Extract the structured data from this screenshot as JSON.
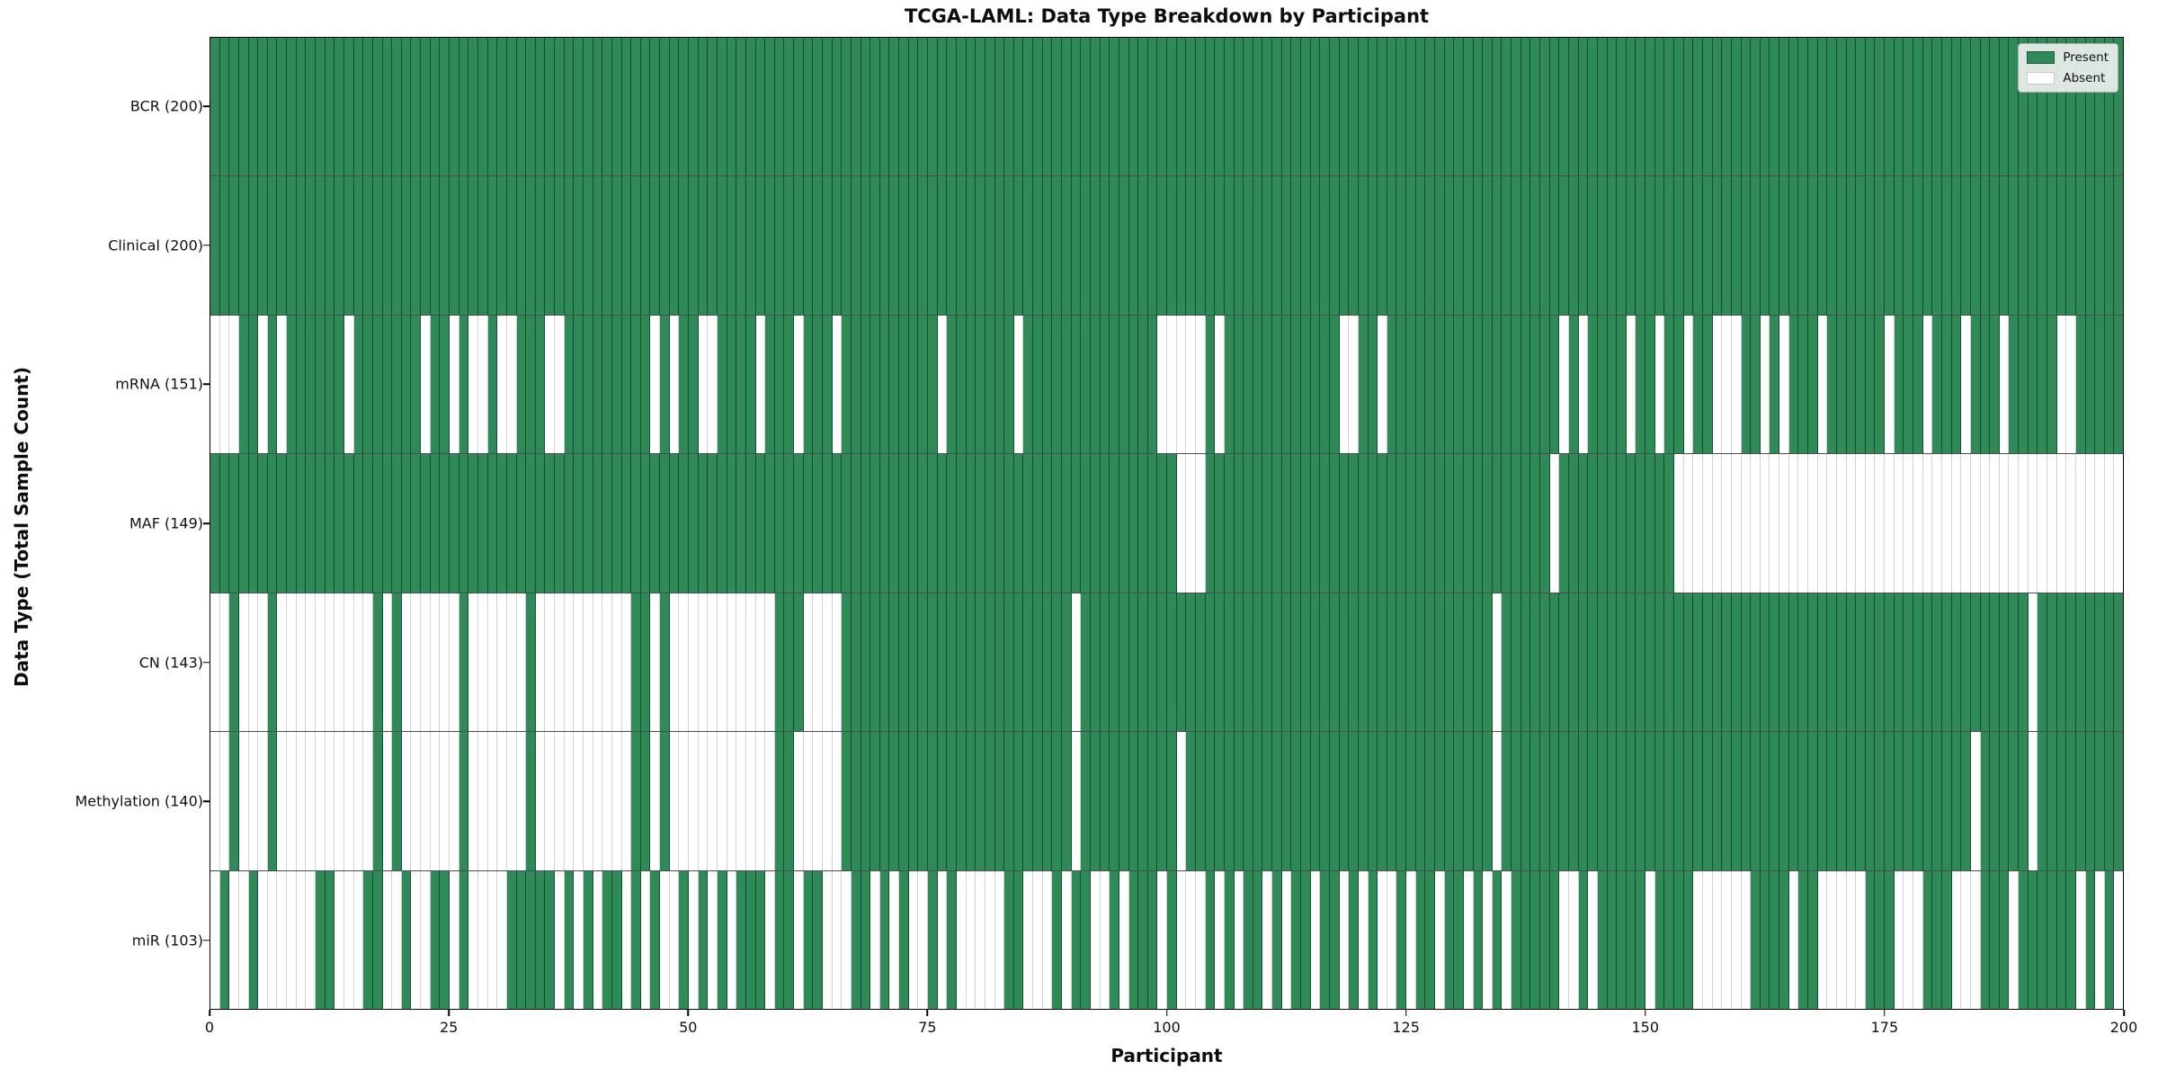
{
  "title": "TCGA-LAML: Data Type Breakdown by Participant",
  "chart_data": {
    "type": "heatmap",
    "title": "TCGA-LAML: Data Type Breakdown by Participant",
    "xlabel": "Participant",
    "ylabel": "Data Type (Total Sample Count)",
    "n_participants": 200,
    "x_ticks": [
      0,
      25,
      50,
      75,
      100,
      125,
      150,
      175,
      200
    ],
    "x_range": [
      0,
      200
    ],
    "grid": "cell-edges",
    "legend": {
      "position": "upper right",
      "present_label": "Present",
      "absent_label": "Absent"
    },
    "colors": {
      "present": "#2e8b57",
      "absent": "#ffffff",
      "present_edge": "rgba(0,0,0,0.45)",
      "absent_edge": "#d2d2d2"
    },
    "rows": [
      {
        "label": "BCR (200)",
        "name": "BCR",
        "present_count": 200,
        "absent": []
      },
      {
        "label": "Clinical (200)",
        "name": "Clinical",
        "present_count": 200,
        "absent": []
      },
      {
        "label": "mRNA (151)",
        "name": "mRNA",
        "present_count": 151,
        "absent": [
          0,
          1,
          2,
          5,
          7,
          14,
          22,
          25,
          27,
          28,
          30,
          31,
          35,
          36,
          46,
          48,
          51,
          52,
          57,
          61,
          65,
          76,
          84,
          99,
          100,
          101,
          102,
          103,
          105,
          118,
          119,
          122,
          141,
          143,
          148,
          151,
          154,
          157,
          158,
          159,
          162,
          164,
          168,
          175,
          179,
          183,
          187,
          193,
          194
        ]
      },
      {
        "label": "MAF (149)",
        "name": "MAF",
        "present_count": 149,
        "absent": [
          101,
          102,
          103,
          140,
          153,
          154,
          155,
          156,
          157,
          158,
          159,
          160,
          161,
          162,
          163,
          164,
          165,
          166,
          167,
          168,
          169,
          170,
          171,
          172,
          173,
          174,
          175,
          176,
          177,
          178,
          179,
          180,
          181,
          182,
          183,
          184,
          185,
          186,
          187,
          188,
          189,
          190,
          191,
          192,
          193,
          194,
          195,
          196,
          197,
          198,
          199
        ]
      },
      {
        "label": "CN (143)",
        "name": "CN",
        "present_count": 143,
        "absent": [
          0,
          1,
          3,
          4,
          5,
          7,
          8,
          9,
          10,
          11,
          12,
          13,
          14,
          15,
          16,
          18,
          20,
          21,
          22,
          23,
          24,
          25,
          27,
          28,
          29,
          30,
          31,
          32,
          34,
          35,
          36,
          37,
          38,
          39,
          40,
          41,
          42,
          43,
          46,
          48,
          49,
          50,
          51,
          52,
          53,
          54,
          55,
          56,
          57,
          58,
          62,
          63,
          64,
          65,
          90,
          134,
          190
        ]
      },
      {
        "label": "Methylation (140)",
        "name": "Methylation",
        "present_count": 140,
        "absent": [
          0,
          1,
          3,
          4,
          5,
          7,
          8,
          9,
          10,
          11,
          12,
          13,
          14,
          15,
          16,
          18,
          20,
          21,
          22,
          23,
          24,
          25,
          27,
          28,
          29,
          30,
          31,
          32,
          34,
          35,
          36,
          37,
          38,
          39,
          40,
          41,
          42,
          43,
          46,
          48,
          49,
          50,
          51,
          52,
          53,
          54,
          55,
          56,
          57,
          58,
          61,
          62,
          63,
          64,
          65,
          90,
          101,
          134,
          184,
          190
        ]
      },
      {
        "label": "miR (103)",
        "name": "miR",
        "present_count": 103,
        "absent": [
          0,
          2,
          3,
          5,
          6,
          7,
          8,
          9,
          10,
          13,
          14,
          15,
          18,
          19,
          21,
          22,
          25,
          27,
          28,
          29,
          30,
          36,
          38,
          40,
          43,
          45,
          47,
          48,
          50,
          52,
          54,
          58,
          61,
          64,
          65,
          66,
          69,
          71,
          73,
          74,
          76,
          78,
          79,
          80,
          81,
          82,
          85,
          86,
          87,
          89,
          92,
          93,
          95,
          99,
          101,
          102,
          103,
          105,
          107,
          110,
          112,
          115,
          118,
          120,
          122,
          123,
          125,
          128,
          131,
          133,
          135,
          141,
          142,
          144,
          150,
          155,
          156,
          157,
          158,
          159,
          160,
          165,
          168,
          169,
          170,
          171,
          172,
          176,
          177,
          178,
          182,
          183,
          184,
          188,
          195,
          197,
          199
        ]
      }
    ]
  }
}
